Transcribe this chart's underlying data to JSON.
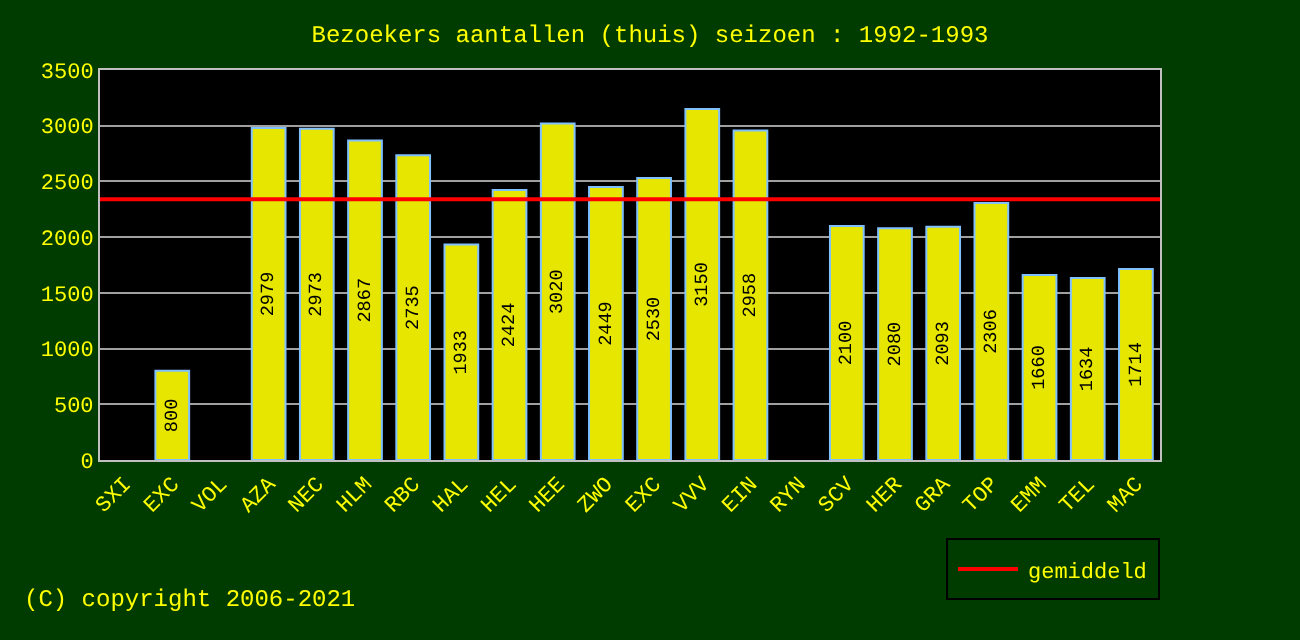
{
  "chart_data": {
    "type": "bar",
    "title": "Bezoekers aantallen (thuis) seizoen : 1992-1993",
    "categories": [
      "SXI",
      "EXC",
      "VOL",
      "AZA",
      "NEC",
      "HLM",
      "RBC",
      "HAL",
      "HEL",
      "HEE",
      "ZWO",
      "EXC",
      "VVV",
      "EIN",
      "RYN",
      "SCV",
      "HER",
      "GRA",
      "TOP",
      "EMM",
      "TEL",
      "MAC"
    ],
    "values": [
      null,
      800,
      null,
      2979,
      2973,
      2867,
      2735,
      1933,
      2424,
      3020,
      2449,
      2530,
      3150,
      2958,
      null,
      2100,
      2080,
      2093,
      2306,
      1660,
      1634,
      1714
    ],
    "color": "#e6e600",
    "data_labels": true,
    "ylim": [
      0,
      3500
    ],
    "yticks": [
      0,
      500,
      1000,
      1500,
      2000,
      2500,
      3000,
      3500
    ],
    "grid": "y",
    "ref_lines": [
      {
        "axis": "y",
        "value": 2340,
        "label": "gemiddeld",
        "color": "#ff0000"
      }
    ],
    "legend": "bottom right",
    "annotations": [
      "(C) copyright 2006-2021"
    ]
  }
}
